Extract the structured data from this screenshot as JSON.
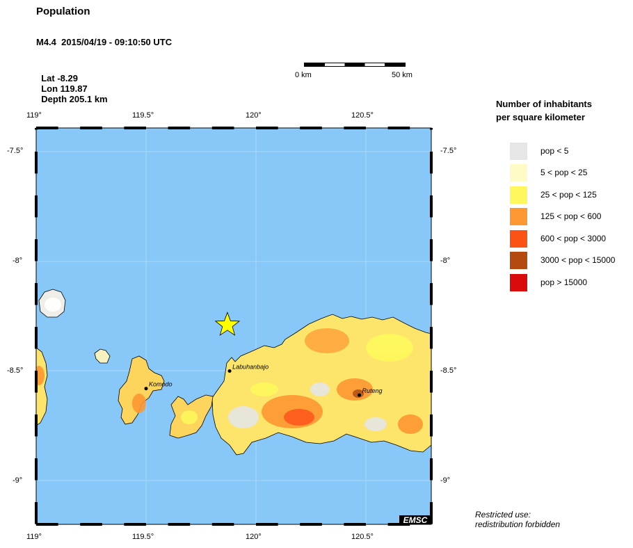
{
  "header": {
    "title": "Population",
    "event_line": "M4.4  2015/04/19 - 09:10:50 UTC",
    "lat": "Lat -8.29",
    "lon": "Lon 119.87",
    "depth": "Depth 205.1 km"
  },
  "scale_bar": {
    "left_label": "0 km",
    "right_label": "50 km"
  },
  "map": {
    "top_ticks": [
      "119°",
      "119.5°",
      "120°",
      "120.5°"
    ],
    "bottom_ticks": [
      "119°",
      "119.5°",
      "120°",
      "120.5°"
    ],
    "left_ticks": [
      "-7.5°",
      "-8°",
      "-8.5°",
      "-9°"
    ],
    "right_ticks": [
      "-7.5°",
      "-8°",
      "-8.5°",
      "-9°"
    ],
    "places": [
      {
        "name": "Labuhanbajo",
        "lon": 119.88,
        "lat": -8.5
      },
      {
        "name": "Komodo",
        "lon": 119.5,
        "lat": -8.58
      },
      {
        "name": "Ruteng",
        "lon": 120.47,
        "lat": -8.61
      }
    ],
    "epicenter": {
      "lon": 119.87,
      "lat": -8.29
    },
    "ocean_color": "#87c8f8",
    "logo": "EMSC"
  },
  "legend": {
    "title_line1": "Number of inhabitants",
    "title_line2": "per square kilometer",
    "items": [
      {
        "label": "pop < 5",
        "color": "#e6e6e6"
      },
      {
        "label": "5 < pop < 25",
        "color": "#fefbc6"
      },
      {
        "label": "25 < pop < 125",
        "color": "#fef85c"
      },
      {
        "label": "125 < pop < 600",
        "color": "#fd9732"
      },
      {
        "label": "600 < pop < 3000",
        "color": "#fd5216"
      },
      {
        "label": "3000 < pop < 15000",
        "color": "#b54a10"
      },
      {
        "label": "pop > 15000",
        "color": "#d90b0b"
      }
    ]
  },
  "footer": {
    "line1": "Restricted use:",
    "line2": "redistribution forbidden"
  }
}
